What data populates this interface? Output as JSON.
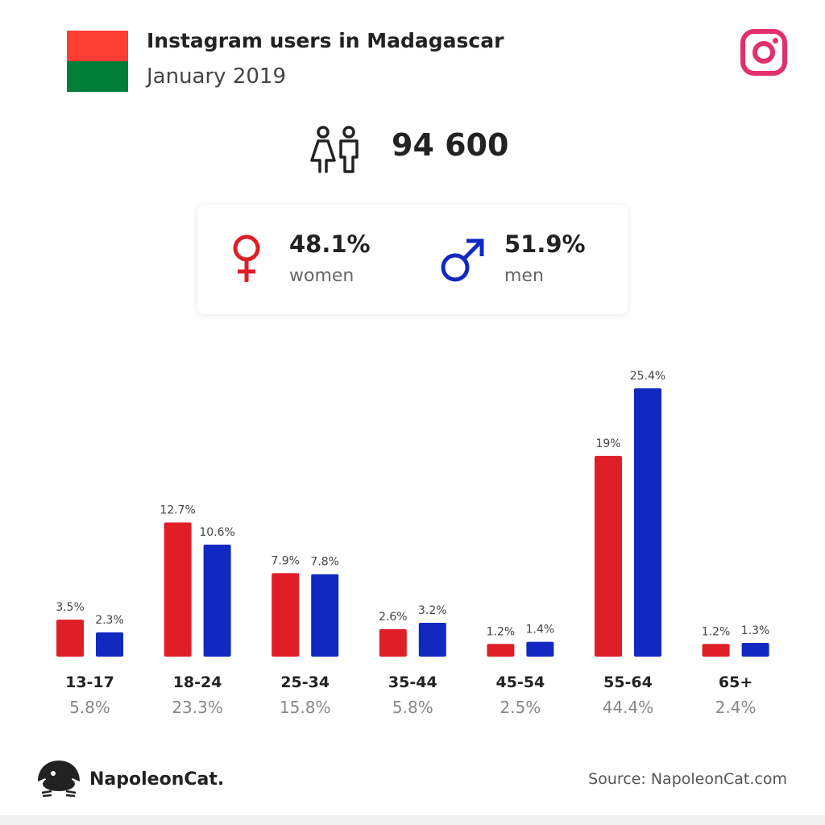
{
  "header": {
    "title": "Instagram users in Madagascar",
    "subtitle": "January 2019",
    "flag_colors": [
      "#fc3d32",
      "#007e3a"
    ],
    "platform_icon": "instagram-icon",
    "platform_color": "#e1306c"
  },
  "summary": {
    "total_users": "94 600",
    "users_icon": "people-icon",
    "women": {
      "percent": "48.1%",
      "label": "women",
      "icon": "female-symbol-icon",
      "color": "#e01e28"
    },
    "men": {
      "percent": "51.9%",
      "label": "men",
      "icon": "male-symbol-icon",
      "color": "#1129c1"
    }
  },
  "colors": {
    "women": "#e01e28",
    "men": "#1129c1"
  },
  "chart_data": {
    "type": "bar",
    "categories": [
      "13-17",
      "18-24",
      "25-34",
      "35-44",
      "45-54",
      "55-64",
      "65+"
    ],
    "category_totals": [
      "5.8%",
      "23.3%",
      "15.8%",
      "5.8%",
      "2.5%",
      "44.4%",
      "2.4%"
    ],
    "series": [
      {
        "key": "women",
        "values": [
          3.5,
          12.7,
          7.9,
          2.6,
          1.2,
          19,
          1.2
        ],
        "labels": [
          "3.5%",
          "12.7%",
          "7.9%",
          "2.6%",
          "1.2%",
          "19%",
          "1.2%"
        ]
      },
      {
        "key": "men",
        "values": [
          2.3,
          10.6,
          7.8,
          3.2,
          1.4,
          25.4,
          1.3
        ],
        "labels": [
          "2.3%",
          "10.6%",
          "7.8%",
          "3.2%",
          "1.4%",
          "25.4%",
          "1.3%"
        ]
      }
    ],
    "ylim": [
      0,
      25.4
    ],
    "grid": false,
    "legend": "none"
  },
  "footer": {
    "brand": "NapoleonCat.",
    "brand_icon": "napoleoncat-logo-icon",
    "source": "Source: NapoleonCat.com"
  }
}
